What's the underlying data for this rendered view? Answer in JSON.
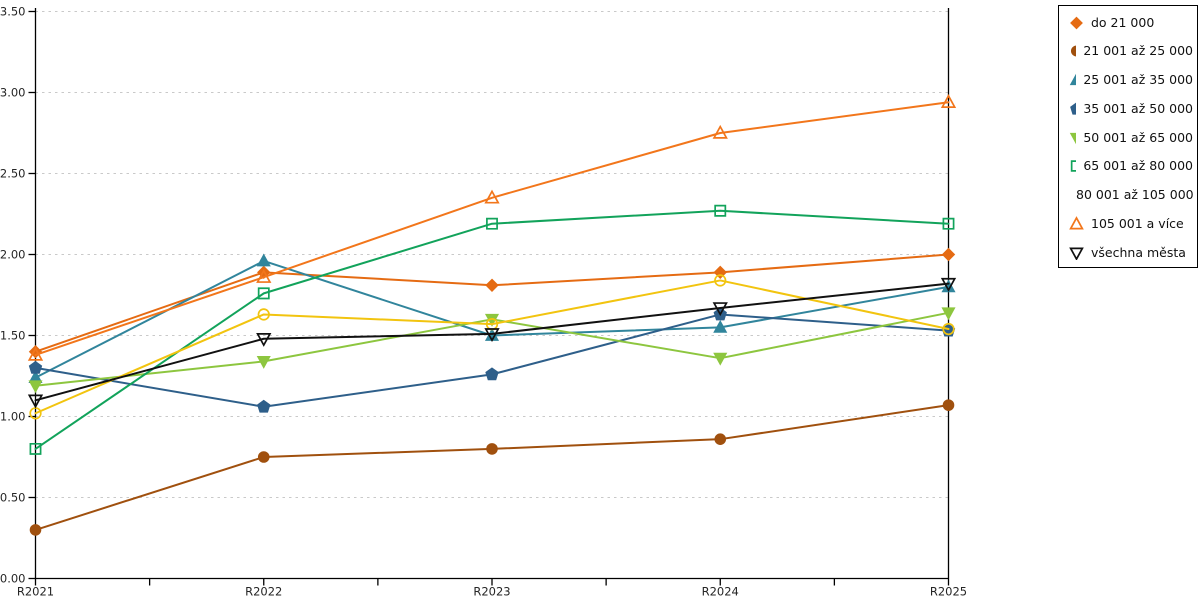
{
  "chart_data": {
    "type": "line",
    "title": "",
    "xlabel": "",
    "ylabel": "",
    "categories": [
      "R2021",
      "R2022",
      "R2023",
      "R2024",
      "R2025"
    ],
    "ylim": [
      0,
      3.5
    ],
    "y_ticks": [
      "0.00",
      "0.50",
      "1.00",
      "1.50",
      "2.00",
      "2.50",
      "3.00",
      "3.50"
    ],
    "grid": "horizontal-dashed",
    "legend_position": "top-right",
    "series": [
      {
        "name": "do 21 000",
        "marker": "diamond",
        "fill": "filled",
        "color": "#E56B13",
        "values": [
          1.4,
          1.89,
          1.81,
          1.89,
          2.0
        ]
      },
      {
        "name": "21 001 až 25 000",
        "marker": "circle",
        "fill": "filled",
        "color": "#A0500E",
        "values": [
          0.3,
          0.75,
          0.8,
          0.86,
          1.07
        ]
      },
      {
        "name": "25 001 až 35 000",
        "marker": "triangle-up",
        "fill": "filled",
        "color": "#31859C",
        "values": [
          1.24,
          1.96,
          1.5,
          1.55,
          1.8
        ]
      },
      {
        "name": "35 001 až 50 000",
        "marker": "pentagon",
        "fill": "filled",
        "color": "#2E5F8A",
        "values": [
          1.3,
          1.06,
          1.26,
          1.63,
          1.53
        ]
      },
      {
        "name": "50 001 až 65 000",
        "marker": "triangle-down",
        "fill": "filled",
        "color": "#8DC63F",
        "values": [
          1.19,
          1.34,
          1.6,
          1.36,
          1.64
        ]
      },
      {
        "name": "65 001 až 80 000",
        "marker": "square",
        "fill": "open",
        "color": "#12A35B",
        "values": [
          0.8,
          1.76,
          2.19,
          2.27,
          2.19
        ]
      },
      {
        "name": "80 001 až 105 000",
        "marker": "circle",
        "fill": "open",
        "color": "#F2C40F",
        "values": [
          1.02,
          1.63,
          1.57,
          1.84,
          1.54
        ]
      },
      {
        "name": "105 001 a více",
        "marker": "triangle-up",
        "fill": "open",
        "color": "#F2761B",
        "values": [
          1.38,
          1.86,
          2.35,
          2.75,
          2.94
        ]
      },
      {
        "name": "všechna města",
        "marker": "triangle-down",
        "fill": "open",
        "color": "#111111",
        "values": [
          1.1,
          1.48,
          1.51,
          1.67,
          1.82
        ]
      }
    ]
  },
  "colors": {
    "background": "#FFFFFF",
    "grid": "#C9C9C9",
    "axis": "#000000",
    "tick_label": "#262626"
  }
}
